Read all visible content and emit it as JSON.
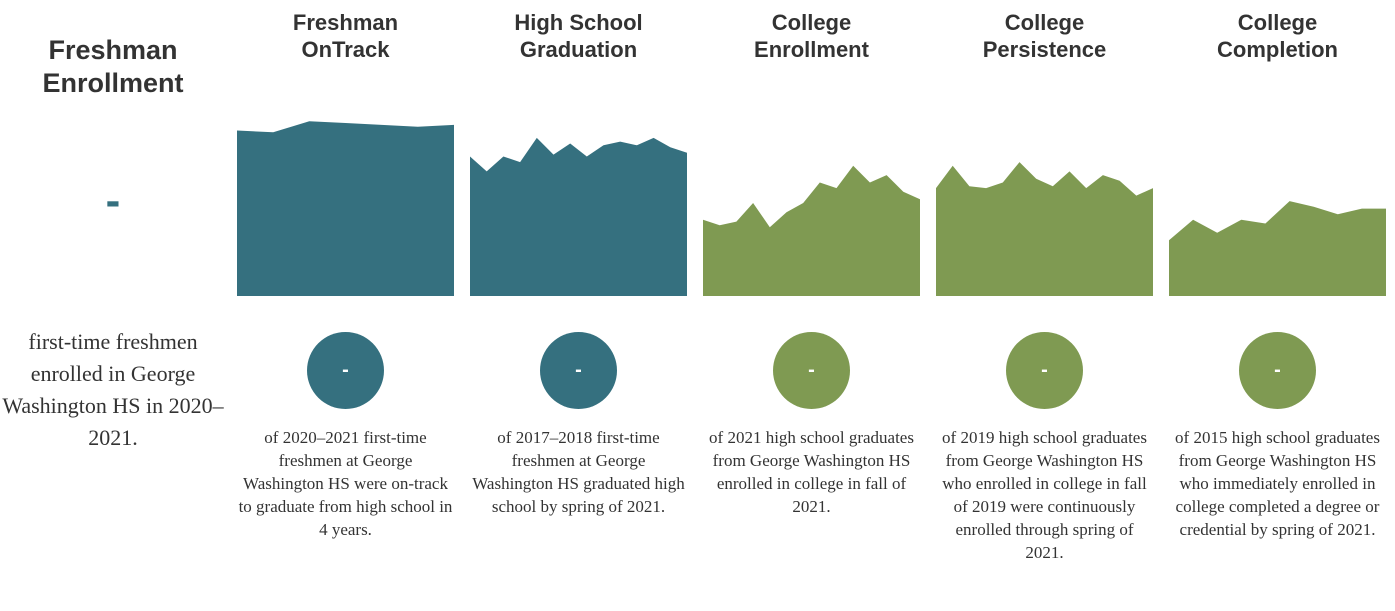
{
  "left": {
    "title": [
      "Freshman",
      "Enrollment"
    ],
    "value": "-",
    "description": "first-time freshmen enrolled in George Washington HS in 2020–2021.",
    "color": "#35707f"
  },
  "ylim": [
    0,
    100
  ],
  "stages": [
    {
      "title": [
        "Freshman",
        "OnTrack"
      ],
      "value": "-",
      "color": "#35707f",
      "values": [
        89,
        88,
        94,
        93,
        92,
        91,
        92
      ],
      "description": "of 2020–2021 first-time freshmen at George Washington HS were on-track to graduate from high school in 4 years."
    },
    {
      "title": [
        "High School",
        "Graduation"
      ],
      "value": "-",
      "color": "#35707f",
      "values": [
        75,
        67,
        75,
        72,
        85,
        76,
        82,
        75,
        81,
        83,
        81,
        85,
        80,
        77
      ],
      "description": "of 2017–2018 first-time freshmen at George Washington HS graduated high school by spring of 2021."
    },
    {
      "title": [
        "College",
        "Enrollment"
      ],
      "value": "-",
      "color": "#7f9a52",
      "values": [
        41,
        38,
        40,
        50,
        37,
        45,
        50,
        61,
        58,
        70,
        61,
        65,
        56,
        52
      ],
      "description": "of 2021 high school graduates from George Washington HS enrolled in college in fall of 2021."
    },
    {
      "title": [
        "College",
        "Persistence"
      ],
      "value": "-",
      "color": "#7f9a52",
      "values": [
        58,
        70,
        59,
        58,
        61,
        72,
        63,
        59,
        67,
        58,
        65,
        62,
        54,
        58
      ],
      "description": "of 2019 high school graduates from George Washington HS who enrolled in college in fall of 2019 were continuously enrolled through spring of 2021."
    },
    {
      "title": [
        "College",
        "Completion"
      ],
      "value": "-",
      "color": "#7f9a52",
      "values": [
        30,
        41,
        34,
        41,
        39,
        51,
        48,
        44,
        47,
        47
      ],
      "description": "of 2015 high school graduates from George Washington HS who immediately enrolled in college completed a degree or credential by spring of 2021."
    }
  ]
}
